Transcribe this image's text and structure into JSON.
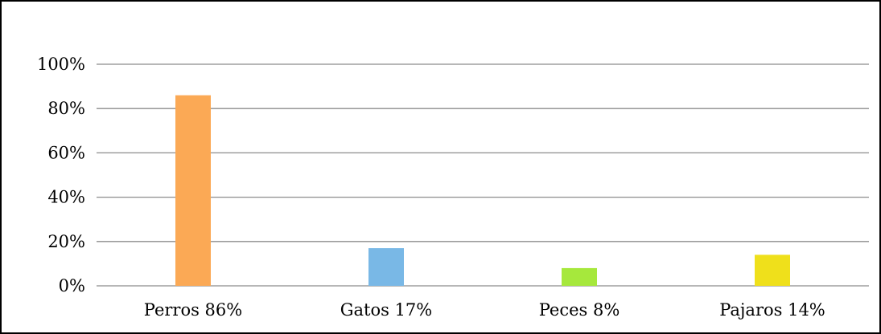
{
  "chart_data": {
    "type": "bar",
    "title": "",
    "xlabel": "",
    "ylabel": "",
    "categories": [
      "Perros 86%",
      "Gatos 17%",
      "Peces 8%",
      "Pajaros 14%"
    ],
    "values": [
      86,
      17,
      8,
      14
    ],
    "colors": [
      "#fba955",
      "#79b8e6",
      "#a6e83c",
      "#efe01b"
    ],
    "ylim": [
      0,
      100
    ],
    "yticks": [
      {
        "value": 0,
        "label": "0%"
      },
      {
        "value": 20,
        "label": "20%"
      },
      {
        "value": 40,
        "label": "40%"
      },
      {
        "value": 60,
        "label": "60%"
      },
      {
        "value": 80,
        "label": "80%"
      },
      {
        "value": 100,
        "label": "100%"
      }
    ],
    "grid": true,
    "gridColor": "#8c8c8c",
    "legend": "none"
  }
}
